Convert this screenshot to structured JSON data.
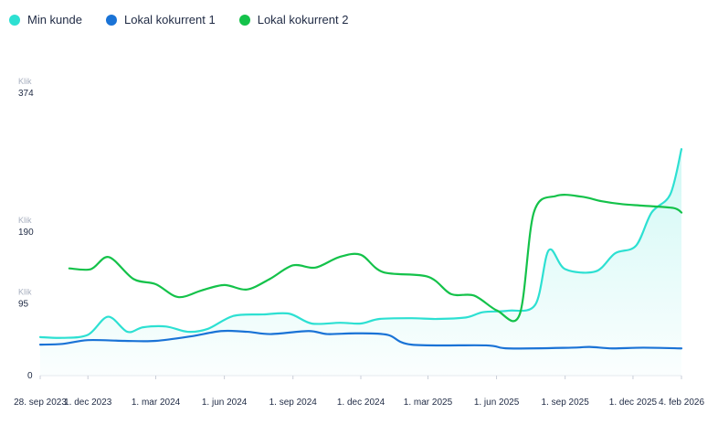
{
  "legend": [
    {
      "name": "Min kunde",
      "color": "#2de0d2"
    },
    {
      "name": "Lokal kokurrent 1",
      "color": "#1a73d6"
    },
    {
      "name": "Lokal kokurrent 2",
      "color": "#14c24a"
    }
  ],
  "chart_data": {
    "type": "line",
    "title": "",
    "xlabel": "",
    "ylabel": "",
    "y_unit": "Klik",
    "ylim": [
      0,
      374
    ],
    "y_ticks": [
      {
        "value": 374,
        "label": "374",
        "unit": "Klik"
      },
      {
        "value": 190,
        "label": "190",
        "unit": "Klik"
      },
      {
        "value": 95,
        "label": "95",
        "unit": "Klik"
      },
      {
        "value": 0,
        "label": "0",
        "unit": ""
      }
    ],
    "x_range": [
      "2023-09-28",
      "2026-02-04"
    ],
    "x_ticks": [
      {
        "date": "2023-09-28",
        "label": "28. sep 2023"
      },
      {
        "date": "2023-12-01",
        "label": "1. dec 2023"
      },
      {
        "date": "2024-03-01",
        "label": "1. mar 2024"
      },
      {
        "date": "2024-06-01",
        "label": "1. jun 2024"
      },
      {
        "date": "2024-09-01",
        "label": "1. sep 2024"
      },
      {
        "date": "2024-12-01",
        "label": "1. dec 2024"
      },
      {
        "date": "2025-03-01",
        "label": "1. mar 2025"
      },
      {
        "date": "2025-06-01",
        "label": "1. jun 2025"
      },
      {
        "date": "2025-09-01",
        "label": "1. sep 2025"
      },
      {
        "date": "2025-12-01",
        "label": "1. dec 2025"
      },
      {
        "date": "2026-02-04",
        "label": "4. feb 2026"
      }
    ],
    "grid": false,
    "legend_position": "top-left",
    "series": [
      {
        "name": "Min kunde",
        "color": "#2de0d2",
        "area": true,
        "points": [
          {
            "x": "2023-09-28",
            "y": 51
          },
          {
            "x": "2023-10-28",
            "y": 50
          },
          {
            "x": "2023-12-01",
            "y": 54
          },
          {
            "x": "2023-12-28",
            "y": 78
          },
          {
            "x": "2024-01-23",
            "y": 58
          },
          {
            "x": "2024-02-13",
            "y": 64
          },
          {
            "x": "2024-03-15",
            "y": 65
          },
          {
            "x": "2024-04-13",
            "y": 58
          },
          {
            "x": "2024-05-10",
            "y": 62
          },
          {
            "x": "2024-06-13",
            "y": 79
          },
          {
            "x": "2024-07-23",
            "y": 81
          },
          {
            "x": "2024-08-27",
            "y": 82
          },
          {
            "x": "2024-09-26",
            "y": 69
          },
          {
            "x": "2024-11-03",
            "y": 70
          },
          {
            "x": "2024-12-01",
            "y": 69
          },
          {
            "x": "2024-12-26",
            "y": 75
          },
          {
            "x": "2025-02-07",
            "y": 76
          },
          {
            "x": "2025-03-13",
            "y": 75
          },
          {
            "x": "2025-04-21",
            "y": 77
          },
          {
            "x": "2025-05-14",
            "y": 84
          },
          {
            "x": "2025-06-17",
            "y": 86
          },
          {
            "x": "2025-07-23",
            "y": 94
          },
          {
            "x": "2025-08-10",
            "y": 166
          },
          {
            "x": "2025-09-01",
            "y": 141
          },
          {
            "x": "2025-10-12",
            "y": 138
          },
          {
            "x": "2025-11-07",
            "y": 162
          },
          {
            "x": "2025-12-05",
            "y": 172
          },
          {
            "x": "2025-12-26",
            "y": 216
          },
          {
            "x": "2026-01-20",
            "y": 240
          },
          {
            "x": "2026-02-04",
            "y": 300
          }
        ]
      },
      {
        "name": "Lokal kokurrent 1",
        "color": "#1a73d6",
        "area": false,
        "points": [
          {
            "x": "2023-09-28",
            "y": 41
          },
          {
            "x": "2023-10-28",
            "y": 42
          },
          {
            "x": "2023-12-01",
            "y": 47
          },
          {
            "x": "2024-01-19",
            "y": 46
          },
          {
            "x": "2024-03-01",
            "y": 46
          },
          {
            "x": "2024-04-17",
            "y": 52
          },
          {
            "x": "2024-05-28",
            "y": 59
          },
          {
            "x": "2024-07-02",
            "y": 58
          },
          {
            "x": "2024-08-02",
            "y": 55
          },
          {
            "x": "2024-09-22",
            "y": 59
          },
          {
            "x": "2024-10-17",
            "y": 55
          },
          {
            "x": "2024-11-25",
            "y": 56
          },
          {
            "x": "2025-01-06",
            "y": 54
          },
          {
            "x": "2025-02-07",
            "y": 41
          },
          {
            "x": "2025-05-18",
            "y": 40
          },
          {
            "x": "2025-06-17",
            "y": 36
          },
          {
            "x": "2025-09-10",
            "y": 37
          },
          {
            "x": "2025-10-04",
            "y": 38
          },
          {
            "x": "2025-11-03",
            "y": 36
          },
          {
            "x": "2025-12-15",
            "y": 37
          },
          {
            "x": "2026-02-04",
            "y": 36
          }
        ]
      },
      {
        "name": "Lokal kokurrent 2",
        "color": "#14c24a",
        "area": false,
        "points": [
          {
            "x": "2023-11-06",
            "y": 142
          },
          {
            "x": "2023-12-05",
            "y": 141
          },
          {
            "x": "2023-12-29",
            "y": 157
          },
          {
            "x": "2024-01-31",
            "y": 128
          },
          {
            "x": "2024-03-01",
            "y": 121
          },
          {
            "x": "2024-03-31",
            "y": 104
          },
          {
            "x": "2024-05-02",
            "y": 113
          },
          {
            "x": "2024-06-01",
            "y": 120
          },
          {
            "x": "2024-07-01",
            "y": 114
          },
          {
            "x": "2024-08-01",
            "y": 128
          },
          {
            "x": "2024-09-01",
            "y": 146
          },
          {
            "x": "2024-10-01",
            "y": 143
          },
          {
            "x": "2024-11-02",
            "y": 157
          },
          {
            "x": "2024-12-01",
            "y": 160
          },
          {
            "x": "2024-12-31",
            "y": 137
          },
          {
            "x": "2025-03-01",
            "y": 131
          },
          {
            "x": "2025-04-01",
            "y": 108
          },
          {
            "x": "2025-05-02",
            "y": 106
          },
          {
            "x": "2025-06-02",
            "y": 86
          },
          {
            "x": "2025-07-02",
            "y": 81
          },
          {
            "x": "2025-07-21",
            "y": 216
          },
          {
            "x": "2025-08-20",
            "y": 238
          },
          {
            "x": "2025-09-23",
            "y": 237
          },
          {
            "x": "2025-10-20",
            "y": 231
          },
          {
            "x": "2025-11-17",
            "y": 227
          },
          {
            "x": "2025-12-15",
            "y": 225
          },
          {
            "x": "2026-01-24",
            "y": 222
          },
          {
            "x": "2026-02-04",
            "y": 216
          }
        ]
      }
    ]
  }
}
